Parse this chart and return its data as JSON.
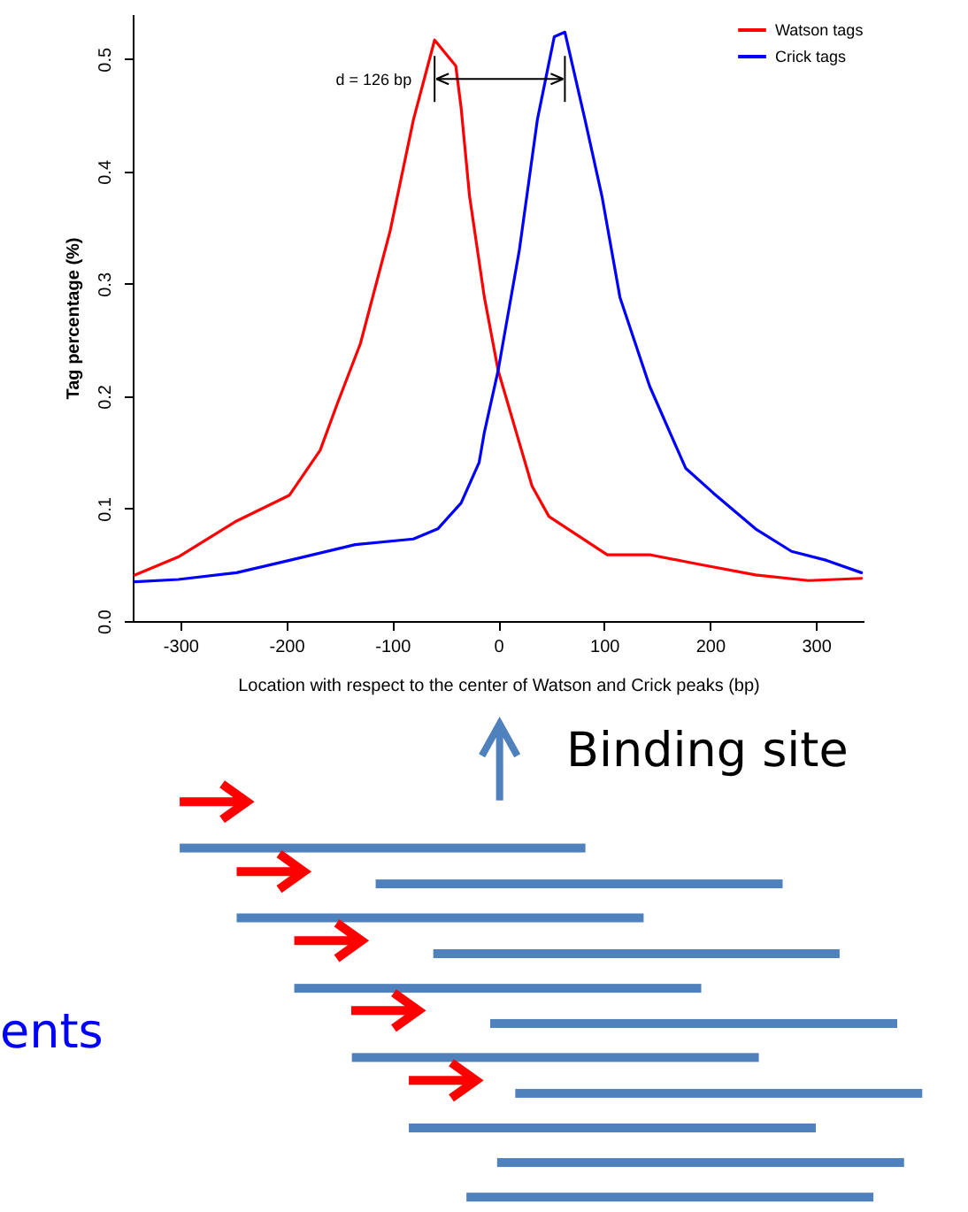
{
  "chart_data": {
    "type": "line",
    "xlabel": "Location with respect to the center of Watson and Crick peaks (bp)",
    "ylabel": "Tag percentage (%)",
    "xlim": [
      -345,
      345
    ],
    "ylim": [
      0,
      0.54
    ],
    "xticks": [
      -300,
      -200,
      -100,
      0,
      100,
      200,
      300
    ],
    "yticks": [
      {
        "value": 0,
        "label": "0.0"
      },
      0.1,
      0.2,
      0.3,
      0.4,
      0.5
    ],
    "grid": false,
    "legend": "top right",
    "marker": "none",
    "line_style": "solid",
    "series": [
      {
        "name": "Watson tags",
        "color": "#ff0000",
        "x": [
          -343,
          -302,
          -247,
          -197,
          -168,
          -152,
          -130,
          -102,
          -80,
          -60,
          -40,
          -35,
          -27,
          -13,
          0,
          32,
          48,
          103,
          143,
          187,
          243,
          293,
          343
        ],
        "values": [
          0.041,
          0.057,
          0.089,
          0.112,
          0.152,
          0.193,
          0.247,
          0.347,
          0.446,
          0.517,
          0.494,
          0.457,
          0.378,
          0.288,
          0.223,
          0.12,
          0.093,
          0.059,
          0.059,
          0.051,
          0.041,
          0.036,
          0.038
        ]
      },
      {
        "name": "Crick tags",
        "color": "#0000ff",
        "x": [
          -343,
          -302,
          -247,
          -197,
          -135,
          -80,
          -57,
          -35,
          -18,
          -13,
          0,
          20,
          37,
          53,
          63,
          82,
          98,
          115,
          143,
          177,
          203,
          243,
          277,
          310,
          343
        ],
        "values": [
          0.035,
          0.037,
          0.043,
          0.054,
          0.068,
          0.073,
          0.082,
          0.105,
          0.141,
          0.168,
          0.223,
          0.33,
          0.446,
          0.52,
          0.524,
          0.446,
          0.378,
          0.288,
          0.209,
          0.136,
          0.114,
          0.082,
          0.062,
          0.054,
          0.043
        ]
      }
    ],
    "annotations": [
      "d = 126 bp",
      "Binding site",
      "ents"
    ]
  }
}
